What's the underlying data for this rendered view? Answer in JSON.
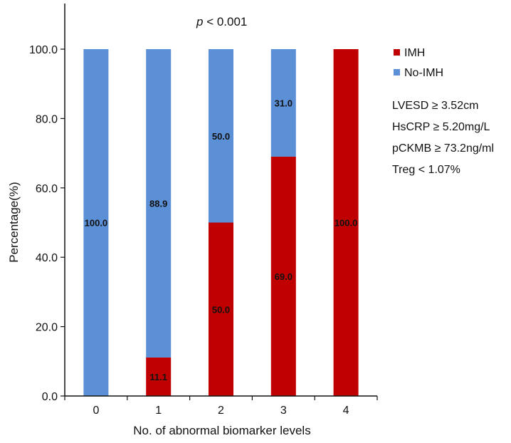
{
  "chart_data": {
    "type": "bar",
    "stacked": true,
    "annotation": {
      "p_symbol": "p",
      "rest": " < 0.001"
    },
    "xlabel": "No. of abnormal biomarker levels",
    "ylabel": "Percentage(%)",
    "categories": [
      "0",
      "1",
      "2",
      "3",
      "4"
    ],
    "ylim": [
      0,
      100
    ],
    "yticks": [
      "0.0",
      "20.0",
      "40.0",
      "60.0",
      "80.0",
      "100.0"
    ],
    "ytick_values": [
      0,
      20,
      40,
      60,
      80,
      100
    ],
    "series": [
      {
        "name": "IMH",
        "color": "#c00000",
        "values": [
          0,
          11.1,
          50.0,
          69.0,
          100.0
        ],
        "labels": [
          "",
          "11.1",
          "50.0",
          "69.0",
          "100.0"
        ]
      },
      {
        "name": "No-IMH",
        "color": "#5b8fd6",
        "values": [
          100.0,
          88.9,
          50.0,
          31.0,
          0
        ],
        "labels": [
          "100.0",
          "88.9",
          "50.0",
          "31.0",
          ""
        ]
      }
    ],
    "legend_position": "right",
    "criteria": [
      "LVESD ≥ 3.52cm",
      "HsCRP ≥ 5.20mg/L",
      "pCKMB ≥ 73.2ng/ml",
      "Treg  < 1.07%"
    ]
  }
}
